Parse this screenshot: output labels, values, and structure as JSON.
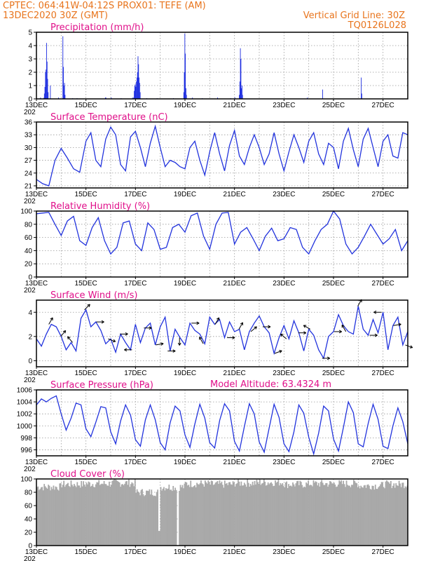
{
  "header": {
    "line1": "CPTEC:   064:41W-04:12S   PROX01: TEFE (AM)",
    "line2": "13DEC2020 30Z (GMT)",
    "grid_note": "Vertical Grid Line: 30Z",
    "run_id": "TQ0126L028",
    "model_altitude": "Model Altitude: 63.4324 m"
  },
  "x_ticks": [
    "13DEC",
    "15DEC",
    "17DEC",
    "19DEC",
    "21DEC",
    "23DEC",
    "25DEC",
    "27DEC"
  ],
  "x_tick_stub": "202",
  "colors": {
    "line": "#2233dd",
    "bar": "#1d2de0",
    "cloud": "#a9a9a9",
    "title": "#e0108a",
    "header": "#e8741c"
  },
  "chart_data": [
    {
      "type": "bar",
      "title": "Precipitation  (mm/h)",
      "ylim": [
        0,
        5
      ],
      "yticks": [
        0,
        1,
        2,
        3,
        4,
        5
      ],
      "x_start_day": 13,
      "values": [
        0.05,
        0,
        0,
        0,
        0,
        0,
        0,
        0.1,
        0,
        0,
        0,
        0,
        0,
        0.08,
        0.4,
        0.9,
        2.0,
        2.2,
        4.2,
        2.8,
        1.5,
        0.5,
        0,
        0,
        0,
        1.0,
        0,
        0,
        0,
        0,
        0,
        0,
        0,
        0,
        0,
        0,
        0,
        0,
        0,
        0,
        0.1,
        0,
        0,
        0,
        0,
        0,
        0,
        0,
        4.7,
        2.4,
        1.0,
        1.2,
        0.3,
        0,
        0,
        0,
        0,
        0,
        0,
        0,
        0,
        0,
        0,
        0,
        0,
        0,
        0.05,
        0,
        0,
        0,
        0,
        0,
        0,
        0,
        0.05,
        0,
        0,
        0,
        0,
        0,
        0,
        0,
        0,
        0,
        0,
        0,
        0,
        0,
        0,
        0,
        0,
        0,
        0,
        0,
        0,
        0,
        0,
        0,
        0,
        0,
        0,
        0,
        0,
        0,
        0,
        0,
        0,
        0,
        0,
        0,
        0,
        0,
        0,
        0,
        0,
        0,
        0,
        0,
        0,
        0,
        0,
        0,
        0,
        0,
        0,
        0,
        0.1,
        0.1,
        0,
        0,
        0,
        0,
        0,
        0,
        0,
        0,
        0,
        0.1,
        0,
        0,
        0,
        0,
        0,
        0,
        0,
        0,
        0,
        0,
        0,
        0,
        0,
        0,
        0,
        0,
        0,
        0.05,
        0,
        0,
        0,
        0,
        0,
        0,
        0,
        0,
        0,
        0,
        0,
        0,
        0,
        0,
        0,
        0,
        0,
        0,
        0,
        0,
        0.1,
        0,
        0.1,
        0.6,
        1.0,
        1.1,
        0.9,
        1.3,
        1.6,
        2.0,
        3.2,
        2.6,
        1.6,
        1.2,
        0.5,
        0,
        0,
        0,
        0,
        0,
        0,
        0,
        0,
        0,
        0,
        0,
        0.05,
        0,
        0,
        0,
        0,
        0,
        0,
        0,
        0,
        0,
        0,
        0,
        0,
        0,
        0,
        0,
        0,
        0,
        0,
        0.05,
        0,
        0,
        0,
        0,
        0,
        0,
        0,
        0,
        0,
        0,
        0,
        0,
        0,
        0,
        0,
        0,
        0,
        0,
        0,
        0,
        0,
        0,
        0,
        0,
        0,
        0,
        0,
        0,
        0,
        0.05,
        0,
        0,
        0,
        0,
        0,
        0,
        0,
        0,
        0,
        0,
        0,
        0,
        0,
        0,
        0,
        0,
        0,
        0,
        0.5,
        2.0,
        4.9,
        3.4,
        0.8,
        0.3,
        0,
        0,
        0,
        0,
        0,
        0,
        0,
        0,
        0,
        0,
        0.1,
        0,
        0,
        0,
        0,
        0,
        0,
        0,
        0,
        0,
        0,
        0,
        0,
        0,
        0,
        0,
        0,
        0,
        0.05,
        0,
        0,
        0,
        0,
        0,
        0,
        0,
        0,
        0,
        0,
        0,
        0,
        0,
        0,
        0,
        0,
        0,
        0,
        0,
        0,
        0,
        0,
        0,
        0,
        0,
        0,
        0,
        0.1,
        0,
        0,
        0,
        0,
        0,
        0,
        0,
        0,
        0,
        0,
        0,
        0,
        0,
        0,
        0,
        0,
        0,
        0,
        0,
        0,
        0,
        0,
        0,
        0.05,
        0,
        0,
        0,
        0,
        0,
        0,
        0,
        0.1,
        0,
        0,
        0,
        0,
        0,
        0,
        0,
        0.3,
        1.3,
        3.8,
        3.0,
        0.8,
        1.0,
        0.3,
        0,
        0,
        0,
        0,
        0,
        0,
        0,
        0,
        0,
        0,
        0,
        0,
        0,
        0,
        0,
        0,
        0,
        0,
        0,
        0,
        0,
        0,
        0,
        0,
        0,
        0,
        0,
        0,
        0,
        0,
        0,
        0,
        0,
        0,
        0,
        0,
        0,
        0,
        0,
        0,
        0,
        0,
        0,
        0,
        0,
        0,
        0,
        0,
        0,
        0,
        0,
        0,
        0,
        0,
        0,
        0,
        0,
        0,
        0,
        0,
        0,
        0,
        0,
        0,
        0,
        0,
        0,
        0,
        0,
        0,
        0,
        0,
        0,
        0,
        0,
        0,
        0,
        0,
        0,
        0,
        0,
        0,
        0,
        0,
        0,
        0,
        0,
        0,
        0,
        0,
        0,
        0,
        0,
        0,
        0,
        0,
        0,
        0,
        0,
        0,
        0,
        0,
        0,
        0,
        0,
        0,
        0,
        0,
        0,
        0,
        0,
        0,
        0,
        0,
        0,
        0,
        0,
        0,
        0.1,
        0,
        0,
        0,
        0,
        0,
        0,
        0,
        0,
        0,
        0,
        0,
        0,
        0,
        0,
        0,
        0,
        0,
        0,
        0,
        0,
        0,
        0,
        0,
        0,
        0,
        0,
        0,
        0.7,
        0,
        0,
        0,
        0,
        0,
        0,
        0,
        0,
        0,
        0,
        0,
        0,
        0,
        0,
        0,
        0,
        0,
        0,
        0,
        0,
        0,
        0,
        0,
        0,
        0,
        0,
        0,
        0,
        0,
        0,
        0,
        0,
        0,
        0,
        0,
        0,
        0,
        0,
        0,
        0,
        0,
        0,
        0,
        0,
        0,
        0,
        0,
        0,
        0,
        0,
        0,
        0,
        0,
        0,
        0,
        0,
        0,
        0,
        0,
        0,
        0,
        0,
        0,
        0,
        0,
        0,
        0,
        0,
        0,
        0,
        1.6,
        0.4,
        0,
        0,
        0,
        0,
        0,
        0,
        0,
        0,
        0,
        0,
        0,
        0,
        0,
        0,
        0,
        0,
        0,
        0,
        0,
        0,
        0,
        0,
        0,
        0,
        0,
        0,
        0,
        0,
        0,
        0,
        0,
        0,
        0,
        0,
        0,
        0,
        0,
        0,
        0,
        0,
        0,
        0,
        0,
        0,
        0,
        0,
        0,
        0,
        0,
        0,
        0,
        0,
        0,
        0,
        0,
        0,
        0,
        0,
        0,
        0,
        0,
        0,
        0,
        0,
        0,
        0,
        0,
        0,
        0,
        0,
        0,
        0,
        0,
        0,
        0,
        0,
        0,
        0,
        0,
        0,
        0,
        0,
        0,
        0
      ]
    },
    {
      "type": "line",
      "title": "Surface Temperature (nC)",
      "ylim": [
        20.5,
        36
      ],
      "yticks": [
        21,
        24,
        27,
        30,
        33,
        36
      ],
      "x": [
        13.0,
        13.25,
        13.5,
        13.75,
        14.0,
        14.25,
        14.5,
        14.75,
        15.0,
        15.2,
        15.4,
        15.6,
        15.8,
        16.0,
        16.2,
        16.4,
        16.6,
        16.8,
        17.0,
        17.2,
        17.4,
        17.6,
        17.8,
        18.0,
        18.2,
        18.4,
        18.6,
        18.8,
        19.0,
        19.2,
        19.4,
        19.6,
        19.8,
        20.0,
        20.2,
        20.4,
        20.6,
        20.8,
        21.0,
        21.2,
        21.4,
        21.6,
        21.8,
        22.0,
        22.2,
        22.4,
        22.6,
        22.8,
        23.0,
        23.2,
        23.4,
        23.6,
        23.8,
        24.0,
        24.2,
        24.4,
        24.6,
        24.8,
        25.0,
        25.2,
        25.4,
        25.6,
        25.8,
        26.0,
        26.2,
        26.4,
        26.6,
        26.8,
        27.0,
        27.2,
        27.4,
        27.6,
        27.8,
        28.0
      ],
      "y": [
        22.5,
        21.5,
        21.0,
        27.0,
        29.8,
        27.5,
        25.0,
        24.2,
        31.5,
        33.5,
        27.0,
        25.5,
        32.0,
        34.8,
        33.0,
        26.0,
        24.5,
        32.5,
        33.8,
        30.0,
        25.5,
        31.0,
        35.0,
        30.0,
        25.5,
        27.0,
        26.5,
        25.5,
        25.0,
        30.0,
        31.5,
        27.0,
        23.5,
        29.0,
        33.5,
        28.5,
        24.5,
        30.5,
        34.0,
        28.0,
        26.0,
        30.0,
        33.0,
        30.0,
        26.0,
        28.5,
        33.5,
        28.5,
        24.5,
        29.0,
        33.0,
        30.0,
        26.5,
        31.5,
        33.5,
        28.5,
        26.0,
        31.0,
        30.0,
        25.0,
        31.5,
        34.5,
        29.5,
        25.5,
        32.0,
        34.5,
        30.0,
        25.5,
        31.5,
        33.0,
        28.0,
        27.5,
        33.5,
        33.0
      ]
    },
    {
      "type": "line",
      "title": "Relative Humidity (%)",
      "ylim": [
        0,
        100
      ],
      "yticks": [
        0,
        20,
        40,
        60,
        80,
        100
      ],
      "x": [
        13.0,
        13.25,
        13.5,
        13.75,
        14.0,
        14.25,
        14.5,
        14.75,
        15.0,
        15.25,
        15.5,
        15.75,
        16.0,
        16.25,
        16.5,
        16.75,
        17.0,
        17.25,
        17.5,
        17.75,
        18.0,
        18.25,
        18.5,
        18.75,
        19.0,
        19.25,
        19.5,
        19.75,
        20.0,
        20.25,
        20.5,
        20.75,
        21.0,
        21.25,
        21.5,
        21.75,
        22.0,
        22.25,
        22.5,
        22.75,
        23.0,
        23.25,
        23.5,
        23.75,
        24.0,
        24.25,
        24.5,
        24.75,
        25.0,
        25.25,
        25.5,
        25.75,
        26.0,
        26.25,
        26.5,
        26.75,
        27.0,
        27.25,
        27.5,
        27.75,
        28.0
      ],
      "y": [
        96,
        97,
        98,
        80,
        63,
        85,
        92,
        55,
        48,
        75,
        90,
        55,
        35,
        45,
        82,
        85,
        50,
        40,
        82,
        72,
        42,
        45,
        75,
        80,
        68,
        93,
        97,
        62,
        42,
        80,
        97,
        98,
        50,
        68,
        75,
        58,
        40,
        62,
        74,
        55,
        58,
        75,
        72,
        45,
        35,
        55,
        72,
        80,
        100,
        88,
        50,
        35,
        45,
        62,
        80,
        65,
        50,
        58,
        72,
        40,
        55
      ]
    },
    {
      "type": "line",
      "title": "Surface Wind (m/s)",
      "ylim": [
        -0.5,
        5
      ],
      "yticks": [
        0,
        2,
        4
      ],
      "x": [
        13.0,
        13.2,
        13.4,
        13.6,
        13.8,
        14.0,
        14.2,
        14.4,
        14.6,
        14.8,
        15.0,
        15.2,
        15.4,
        15.6,
        15.8,
        16.0,
        16.2,
        16.4,
        16.6,
        16.8,
        17.0,
        17.2,
        17.4,
        17.6,
        17.8,
        18.0,
        18.2,
        18.4,
        18.6,
        18.8,
        19.0,
        19.2,
        19.4,
        19.6,
        19.8,
        20.0,
        20.2,
        20.4,
        20.6,
        20.8,
        21.0,
        21.2,
        21.4,
        21.6,
        21.8,
        22.0,
        22.2,
        22.4,
        22.6,
        22.8,
        23.0,
        23.2,
        23.4,
        23.6,
        23.8,
        24.0,
        24.2,
        24.4,
        24.6,
        24.8,
        25.0,
        25.2,
        25.4,
        25.6,
        25.8,
        26.0,
        26.2,
        26.4,
        26.6,
        26.8,
        27.0,
        27.2,
        27.4,
        27.6,
        27.8,
        28.0
      ],
      "y": [
        1.8,
        1.2,
        2.2,
        3.0,
        2.8,
        2.0,
        0.9,
        1.5,
        0.8,
        3.5,
        4.2,
        2.8,
        3.2,
        2.5,
        1.4,
        1.8,
        0.7,
        2.2,
        1.5,
        0.9,
        3.0,
        1.5,
        2.7,
        3.1,
        1.3,
        2.8,
        3.6,
        0.8,
        2.6,
        1.9,
        1.3,
        3.1,
        2.5,
        2.2,
        1.4,
        3.6,
        3.0,
        3.4,
        1.9,
        3.2,
        2.4,
        2.6,
        0.9,
        2.4,
        3.1,
        3.7,
        2.8,
        2.3,
        0.6,
        1.9,
        2.9,
        1.8,
        3.3,
        2.3,
        0.8,
        2.6,
        2.1,
        0.9,
        0.2,
        2.0,
        2.4,
        3.8,
        2.9,
        2.4,
        2.2,
        4.5,
        2.6,
        2.1,
        3.4,
        2.3,
        4.0,
        0.9,
        2.9,
        3.6,
        1.3,
        2.4
      ]
    },
    {
      "type": "line",
      "title": "Surface Pressure (hPa)",
      "ylim": [
        995,
        1006
      ],
      "yticks": [
        996,
        998,
        1000,
        1002,
        1004,
        1006
      ],
      "x": [
        13.0,
        13.2,
        13.4,
        13.6,
        13.8,
        14.0,
        14.2,
        14.4,
        14.6,
        14.8,
        15.0,
        15.2,
        15.4,
        15.6,
        15.8,
        16.0,
        16.2,
        16.4,
        16.6,
        16.8,
        17.0,
        17.2,
        17.4,
        17.6,
        17.8,
        18.0,
        18.2,
        18.4,
        18.6,
        18.8,
        19.0,
        19.2,
        19.4,
        19.6,
        19.8,
        20.0,
        20.2,
        20.4,
        20.6,
        20.8,
        21.0,
        21.2,
        21.4,
        21.6,
        21.8,
        22.0,
        22.2,
        22.4,
        22.6,
        22.8,
        23.0,
        23.2,
        23.4,
        23.6,
        23.8,
        24.0,
        24.2,
        24.4,
        24.6,
        24.8,
        25.0,
        25.2,
        25.4,
        25.6,
        25.8,
        26.0,
        26.2,
        26.4,
        26.6,
        26.8,
        27.0,
        27.2,
        27.4,
        27.6,
        27.8,
        28.0
      ],
      "y": [
        1003.5,
        1004.5,
        1004.0,
        1004.6,
        1005.0,
        1002.0,
        999.3,
        1001.3,
        1003.8,
        1003.5,
        999.5,
        998.2,
        1000.6,
        1003.2,
        1003.0,
        999.0,
        997.0,
        1000.8,
        1003.5,
        1001.8,
        997.7,
        996.6,
        1001.0,
        1003.5,
        1001.0,
        997.2,
        996.0,
        1000.5,
        1003.3,
        1002.5,
        998.5,
        996.4,
        1000.3,
        1003.6,
        1001.3,
        997.2,
        996.3,
        1000.9,
        1003.7,
        1002.5,
        997.4,
        995.8,
        999.9,
        1003.7,
        1002.0,
        997.3,
        995.6,
        999.6,
        1003.6,
        1001.4,
        997.0,
        995.7,
        999.0,
        1003.5,
        1002.1,
        998.1,
        995.3,
        998.8,
        1003.3,
        1002.5,
        997.8,
        995.8,
        999.7,
        1004.0,
        1002.2,
        997.0,
        996.5,
        1000.4,
        1003.6,
        1001.1,
        996.6,
        996.2,
        1000.0,
        1003.0,
        1000.7,
        997.0
      ]
    },
    {
      "type": "bar",
      "title": "Cloud Cover (%)",
      "ylim": [
        0,
        100
      ],
      "yticks": [
        0,
        20,
        40,
        60,
        80,
        100
      ],
      "x_start_day": 13,
      "daily_mean": [
        88,
        92,
        93,
        94,
        80,
        88,
        93,
        92,
        94,
        95,
        92,
        93,
        93,
        90,
        92
      ],
      "dips": [
        {
          "day": 17.95,
          "value": 22
        },
        {
          "day": 18.72,
          "value": 0
        }
      ]
    }
  ]
}
